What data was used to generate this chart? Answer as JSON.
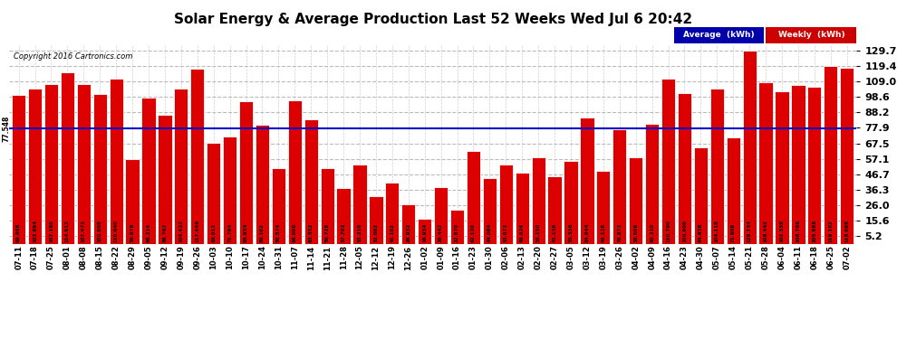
{
  "title": "Solar Energy & Average Production Last 52 Weeks Wed Jul 6 20:42",
  "copyright": "Copyright 2016 Cartronics.com",
  "average_line": 77.548,
  "bar_color": "#dd0000",
  "bar_edge_color": "#ffffff",
  "average_line_color": "#0000cc",
  "background_color": "#ffffff",
  "grid_color": "#bbbbbb",
  "ylim": [
    0,
    134
  ],
  "yticks": [
    5.2,
    15.6,
    26.0,
    36.3,
    46.7,
    57.1,
    67.5,
    77.9,
    88.2,
    98.6,
    109.0,
    119.4,
    129.7
  ],
  "categories": [
    "07-11",
    "07-18",
    "07-25",
    "08-01",
    "08-08",
    "08-15",
    "08-22",
    "08-29",
    "09-05",
    "09-12",
    "09-19",
    "09-26",
    "10-03",
    "10-10",
    "10-17",
    "10-24",
    "10-31",
    "11-07",
    "11-14",
    "11-21",
    "11-28",
    "12-05",
    "12-12",
    "12-19",
    "12-26",
    "01-02",
    "01-09",
    "01-16",
    "01-23",
    "01-30",
    "02-06",
    "02-13",
    "02-20",
    "02-27",
    "03-05",
    "03-12",
    "03-19",
    "03-26",
    "04-02",
    "04-09",
    "04-16",
    "04-23",
    "04-30",
    "05-07",
    "05-14",
    "05-21",
    "05-28",
    "06-04",
    "06-11",
    "06-18",
    "06-25",
    "07-02"
  ],
  "values": [
    99.968,
    103.894,
    107.19,
    114.912,
    107.472,
    100.808,
    110.94,
    56.976,
    98.214,
    86.762,
    104.432,
    117.448,
    68.012,
    71.794,
    95.954,
    80.102,
    50.574,
    96.0,
    83.552,
    50.728,
    37.792,
    53.21,
    32.062,
    41.102,
    26.932,
    16.934,
    38.442,
    22.87,
    62.12,
    44.064,
    53.072,
    48.024,
    58.15,
    45.136,
    55.536,
    84.944,
    49.128,
    76.872,
    58.008,
    80.31,
    110.79,
    100.906,
    64.858,
    104.118,
    71.606,
    129.734,
    108.442,
    102.358,
    106.766,
    105.668,
    119.102,
    118.098
  ],
  "bar_labels": [
    "99.968",
    "103.894",
    "107.190",
    "114.912",
    "107.472",
    "100.808",
    "110.940",
    "56.976",
    "98.214",
    "86.762",
    "104.432",
    "117.448",
    "68.012",
    "71.794",
    "95.954",
    "80.102",
    "50.574",
    "96.000",
    "83.552",
    "50.728",
    "37.792",
    "53.210",
    "32.062",
    "41.102",
    "26.932",
    "16.934",
    "38.442",
    "22.870",
    "62.120",
    "44.064",
    "53.072",
    "48.024",
    "58.150",
    "45.136",
    "55.536",
    "84.944",
    "49.128",
    "76.872",
    "58.008",
    "80.310",
    "110.790",
    "100.906",
    "64.858",
    "104.118",
    "71.606",
    "129.734",
    "108.442",
    "102.358",
    "106.766",
    "105.668",
    "119.102",
    "118.098"
  ]
}
